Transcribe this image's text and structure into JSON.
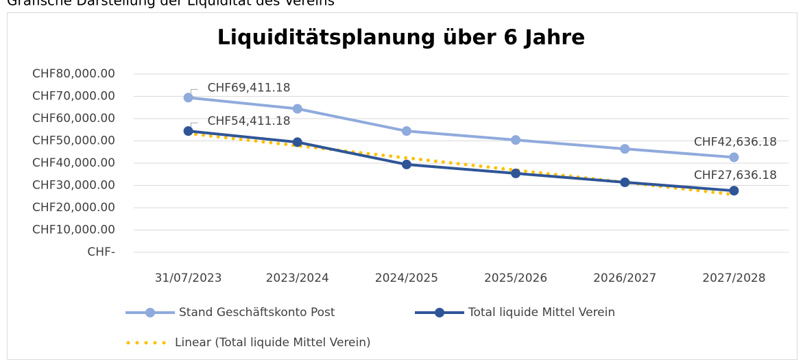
{
  "header": {
    "title": "Grafische Darstellung der Liquidität des Vereins"
  },
  "chart_data": {
    "type": "line",
    "title": "Liquiditätsplanung über 6 Jahre",
    "categories": [
      "31/07/2023",
      "2023/2024",
      "2024/2025",
      "2025/2026",
      "2026/2027",
      "2027/2028"
    ],
    "series": [
      {
        "name": "Stand Geschäftskonto Post",
        "color": "#8faadc",
        "style": "marker",
        "values": [
          69411.18,
          64411.18,
          54411.18,
          50411.18,
          46411.18,
          42636.18
        ],
        "value_labels": [
          "CHF69,411.18",
          null,
          null,
          null,
          null,
          "CHF42,636.18"
        ]
      },
      {
        "name": "Total liquide Mittel Verein",
        "color": "#2f5597",
        "style": "marker",
        "values": [
          54411.18,
          49411.18,
          39411.18,
          35411.18,
          31411.18,
          27636.18
        ],
        "value_labels": [
          "CHF54,411.18",
          null,
          null,
          null,
          null,
          "CHF27,636.18"
        ]
      },
      {
        "name": "Linear (Total liquide Mittel Verein)",
        "color": "#ffc000",
        "style": "dotted",
        "values": [
          53320.7,
          47838.6,
          42356.4,
          36874.3,
          31392.1,
          25910.0
        ]
      }
    ],
    "ylim": [
      0,
      80000
    ],
    "yticks": [
      {
        "value": 0,
        "label": "CHF-"
      },
      {
        "value": 10000,
        "label": "CHF10,000.00"
      },
      {
        "value": 20000,
        "label": "CHF20,000.00"
      },
      {
        "value": 30000,
        "label": "CHF30,000.00"
      },
      {
        "value": 40000,
        "label": "CHF40,000.00"
      },
      {
        "value": 50000,
        "label": "CHF50,000.00"
      },
      {
        "value": 60000,
        "label": "CHF60,000.00"
      },
      {
        "value": 70000,
        "label": "CHF70,000.00"
      },
      {
        "value": 80000,
        "label": "CHF80,000.00"
      }
    ],
    "grid": true
  }
}
